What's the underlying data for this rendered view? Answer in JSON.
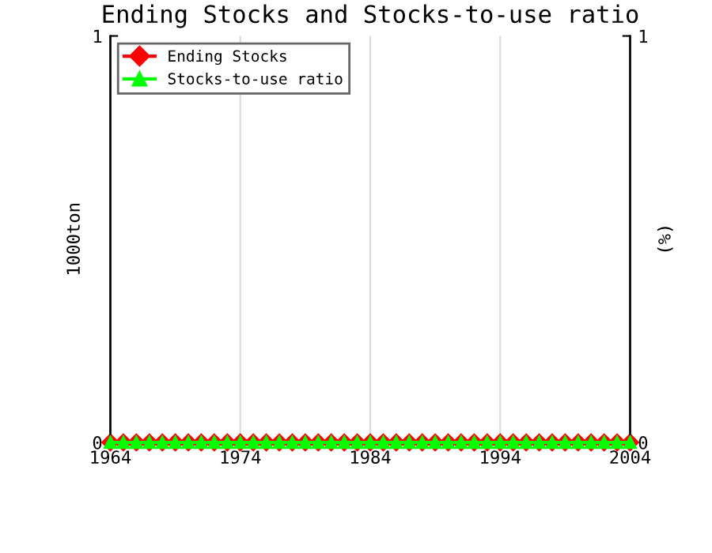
{
  "chart_data": {
    "type": "line",
    "title": "Ending Stocks and Stocks-to-use ratio",
    "ylabel": "1000ton",
    "y2label": "(%)",
    "x": [
      1964,
      1965,
      1966,
      1967,
      1968,
      1969,
      1970,
      1971,
      1972,
      1973,
      1974,
      1975,
      1976,
      1977,
      1978,
      1979,
      1980,
      1981,
      1982,
      1983,
      1984,
      1985,
      1986,
      1987,
      1988,
      1989,
      1990,
      1991,
      1992,
      1993,
      1994,
      1995,
      1996,
      1997,
      1998,
      1999,
      2000,
      2001,
      2002,
      2003,
      2004
    ],
    "series": [
      {
        "name": "Ending Stocks",
        "color": "#ff0000",
        "marker": "diamond",
        "values": [
          0,
          0,
          0,
          0,
          0,
          0,
          0,
          0,
          0,
          0,
          0,
          0,
          0,
          0,
          0,
          0,
          0,
          0,
          0,
          0,
          0,
          0,
          0,
          0,
          0,
          0,
          0,
          0,
          0,
          0,
          0,
          0,
          0,
          0,
          0,
          0,
          0,
          0,
          0,
          0,
          0
        ]
      },
      {
        "name": "Stocks-to-use ratio",
        "color": "#00ff00",
        "marker": "triangle",
        "axis": "y2",
        "values": [
          0,
          0,
          0,
          0,
          0,
          0,
          0,
          0,
          0,
          0,
          0,
          0,
          0,
          0,
          0,
          0,
          0,
          0,
          0,
          0,
          0,
          0,
          0,
          0,
          0,
          0,
          0,
          0,
          0,
          0,
          0,
          0,
          0,
          0,
          0,
          0,
          0,
          0,
          0,
          0,
          0
        ]
      }
    ],
    "xlim": [
      1964,
      2004
    ],
    "xticks": [
      1964,
      1974,
      1984,
      1994,
      2004
    ],
    "ylim": [
      0,
      1
    ],
    "yticks": [
      0,
      1
    ],
    "y2lim": [
      0,
      1
    ],
    "y2ticks": [
      0,
      1
    ],
    "grid": "x",
    "legend": "top left"
  }
}
